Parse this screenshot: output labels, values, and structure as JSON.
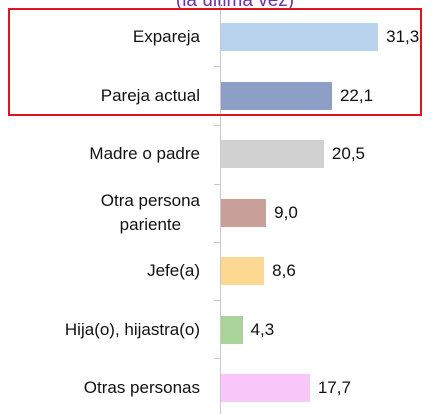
{
  "chart_data": {
    "type": "bar",
    "orientation": "horizontal",
    "subtitle": "(la última vez)",
    "categories": [
      "Expareja",
      "Pareja actual",
      "Madre o padre",
      "Otra persona\npariente",
      "Jefe(a)",
      "Hija(o), hijastra(o)",
      "Otras personas"
    ],
    "values": [
      31.3,
      22.1,
      20.5,
      9.0,
      8.6,
      4.3,
      17.7
    ],
    "value_labels": [
      "31,3",
      "22,1",
      "20,5",
      "9,0",
      "8,6",
      "4,3",
      "17,7"
    ],
    "colors": [
      "#b9d3ef",
      "#8e9fc7",
      "#d1d1d1",
      "#c99f99",
      "#fdd892",
      "#a8d49b",
      "#f9c6f9"
    ]
  }
}
